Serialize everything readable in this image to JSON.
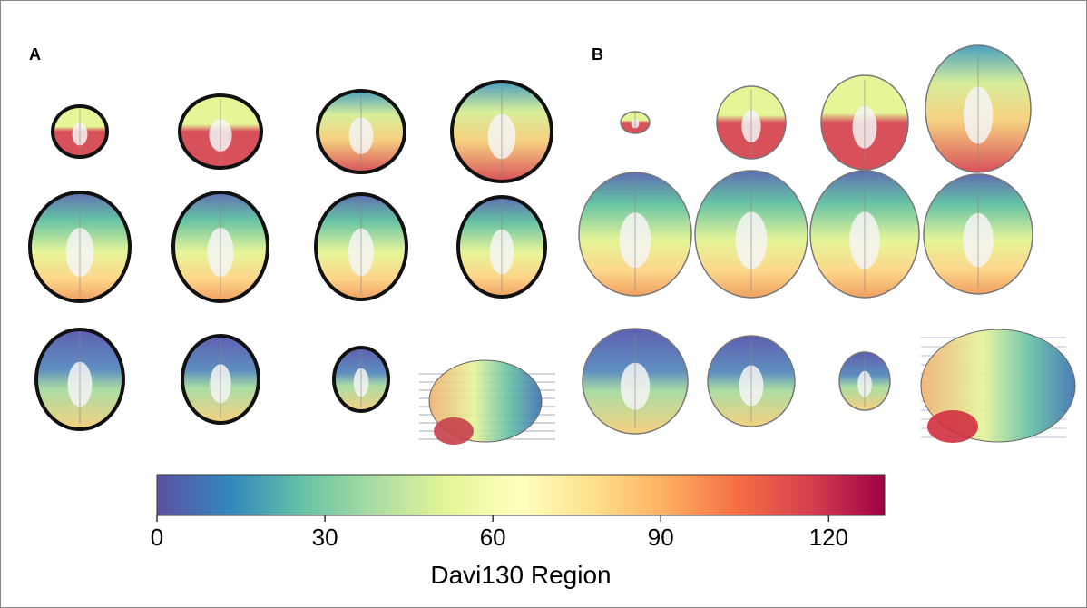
{
  "panels": [
    {
      "label": "A"
    },
    {
      "label": "B"
    }
  ],
  "colorbar": {
    "label": "Davi130 Region",
    "lim": [
      0,
      130
    ],
    "ticks": [
      0,
      30,
      60,
      90,
      120
    ]
  }
}
